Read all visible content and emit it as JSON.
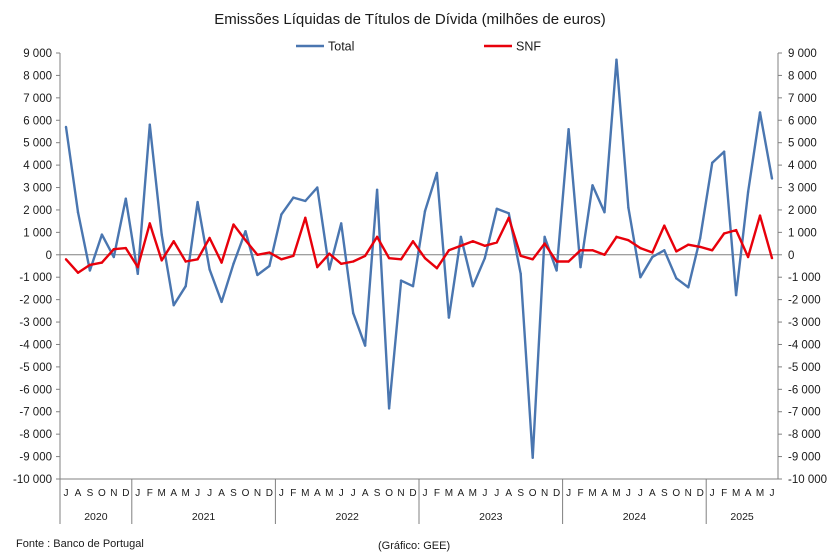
{
  "chart_data": {
    "type": "line",
    "title": "Emissões Líquidas de Títulos de Dívida (milhões de euros)",
    "xlabel": "",
    "ylabel": "",
    "ylim": [
      -10000,
      9000
    ],
    "ytick_labels": [
      "9 000",
      "8 000",
      "7 000",
      "6 000",
      "5 000",
      "4 000",
      "3 000",
      "2 000",
      "1 000",
      "0",
      "-1 000",
      "-2 000",
      "-3 000",
      "-4 000",
      "-5 000",
      "-6 000",
      "-7 000",
      "-8 000",
      "-9 000",
      "-10 000"
    ],
    "grid": false,
    "legend_position": "top",
    "categories": [
      "J",
      "A",
      "S",
      "O",
      "N",
      "D",
      "J",
      "F",
      "M",
      "A",
      "M",
      "J",
      "J",
      "A",
      "S",
      "O",
      "N",
      "D",
      "J",
      "F",
      "M",
      "A",
      "M",
      "J",
      "J",
      "A",
      "S",
      "O",
      "N",
      "D",
      "J",
      "F",
      "M",
      "A",
      "M",
      "J",
      "J",
      "A",
      "S",
      "O",
      "N",
      "D",
      "J",
      "F",
      "M",
      "A",
      "M",
      "J",
      "J",
      "A",
      "S",
      "O",
      "N",
      "D",
      "J",
      "F",
      "M",
      "A",
      "M",
      "J"
    ],
    "years": [
      {
        "label": "2020",
        "start": 0,
        "end": 5
      },
      {
        "label": "2021",
        "start": 6,
        "end": 17
      },
      {
        "label": "2022",
        "start": 18,
        "end": 29
      },
      {
        "label": "2023",
        "start": 30,
        "end": 41
      },
      {
        "label": "2024",
        "start": 42,
        "end": 53
      },
      {
        "label": "2025",
        "start": 54,
        "end": 59
      }
    ],
    "series": [
      {
        "name": "Total",
        "color": "#4a76b0",
        "values": [
          5700,
          1900,
          -700,
          900,
          -100,
          2500,
          -850,
          5800,
          900,
          -2250,
          -1400,
          2350,
          -650,
          -2100,
          -400,
          1050,
          -900,
          -500,
          1800,
          2550,
          2400,
          3000,
          -650,
          1400,
          -2600,
          -4050,
          2900,
          -6850,
          -1150,
          -1400,
          1950,
          3650,
          -2800,
          800,
          -1400,
          -150,
          2050,
          1850,
          -850,
          -9050,
          800,
          -700,
          5600,
          -550,
          3100,
          1900,
          8700,
          2100,
          -1000,
          -100,
          200,
          -1050,
          -1450,
          750,
          4100,
          4600,
          -1800,
          2800,
          6350,
          3400
        ]
      },
      {
        "name": "SNF",
        "color": "#e8000b",
        "values": [
          -200,
          -800,
          -450,
          -350,
          250,
          300,
          -550,
          1400,
          -250,
          600,
          -300,
          -200,
          750,
          -350,
          1350,
          650,
          0,
          100,
          -200,
          -50,
          1650,
          -550,
          50,
          -400,
          -300,
          -50,
          800,
          -150,
          -200,
          600,
          -150,
          -600,
          200,
          400,
          600,
          400,
          550,
          1650,
          -50,
          -200,
          500,
          -300,
          -300,
          200,
          200,
          0,
          800,
          650,
          300,
          100,
          1300,
          150,
          450,
          350,
          200,
          950,
          1100,
          -100,
          1750,
          -150
        ]
      }
    ]
  },
  "footer": {
    "source": "Fonte : Banco de Portugal",
    "credit": "(Gráfico: GEE)"
  }
}
